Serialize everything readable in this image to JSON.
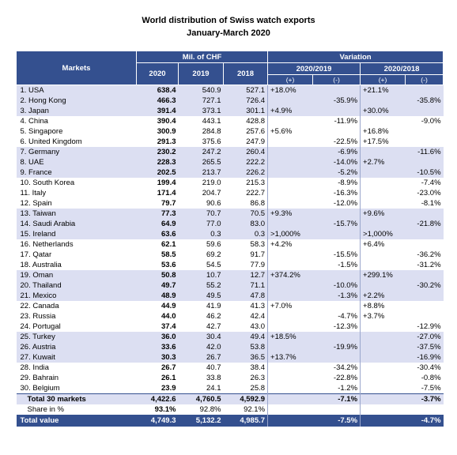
{
  "header": {
    "title": "World distribution of Swiss watch exports",
    "subtitle": "January-March 2020"
  },
  "table": {
    "head": {
      "markets": "Markets",
      "mil": "Mil. of CHF",
      "variation": "Variation",
      "years": [
        "2020",
        "2019",
        "2018"
      ],
      "periods": [
        "2020/2019",
        "2020/2018"
      ],
      "signs": [
        "(+)",
        "(-)",
        "(+)",
        "(-)"
      ]
    },
    "rows": [
      [
        "1. USA",
        "638.4",
        "540.9",
        "527.1",
        "+18.0%",
        null,
        "+21.1%",
        null
      ],
      [
        "2. Hong Kong",
        "466.3",
        "727.1",
        "726.4",
        null,
        "-35.9%",
        null,
        "-35.8%"
      ],
      [
        "3. Japan",
        "391.4",
        "373.1",
        "301.1",
        "+4.9%",
        null,
        "+30.0%",
        null
      ],
      [
        "4. China",
        "390.4",
        "443.1",
        "428.8",
        null,
        "-11.9%",
        null,
        "-9.0%"
      ],
      [
        "5. Singapore",
        "300.9",
        "284.8",
        "257.6",
        "+5.6%",
        null,
        "+16.8%",
        null
      ],
      [
        "6. United Kingdom",
        "291.3",
        "375.6",
        "247.9",
        null,
        "-22.5%",
        "+17.5%",
        null
      ],
      [
        "7. Germany",
        "230.2",
        "247.2",
        "260.4",
        null,
        "-6.9%",
        null,
        "-11.6%"
      ],
      [
        "8. UAE",
        "228.3",
        "265.5",
        "222.2",
        null,
        "-14.0%",
        "+2.7%",
        null
      ],
      [
        "9. France",
        "202.5",
        "213.7",
        "226.2",
        null,
        "-5.2%",
        null,
        "-10.5%"
      ],
      [
        "10. South Korea",
        "199.4",
        "219.0",
        "215.3",
        null,
        "-8.9%",
        null,
        "-7.4%"
      ],
      [
        "11. Italy",
        "171.4",
        "204.7",
        "222.7",
        null,
        "-16.3%",
        null,
        "-23.0%"
      ],
      [
        "12. Spain",
        "79.7",
        "90.6",
        "86.8",
        null,
        "-12.0%",
        null,
        "-8.1%"
      ],
      [
        "13. Taiwan",
        "77.3",
        "70.7",
        "70.5",
        "+9.3%",
        null,
        "+9.6%",
        null
      ],
      [
        "14. Saudi Arabia",
        "64.9",
        "77.0",
        "83.0",
        null,
        "-15.7%",
        null,
        "-21.8%"
      ],
      [
        "15. Ireland",
        "63.6",
        "0.3",
        "0.3",
        ">1,000%",
        null,
        ">1,000%",
        null
      ],
      [
        "16. Netherlands",
        "62.1",
        "59.6",
        "58.3",
        "+4.2%",
        null,
        "+6.4%",
        null
      ],
      [
        "17. Qatar",
        "58.5",
        "69.2",
        "91.7",
        null,
        "-15.5%",
        null,
        "-36.2%"
      ],
      [
        "18. Australia",
        "53.6",
        "54.5",
        "77.9",
        null,
        "-1.5%",
        null,
        "-31.2%"
      ],
      [
        "19. Oman",
        "50.8",
        "10.7",
        "12.7",
        "+374.2%",
        null,
        "+299.1%",
        null
      ],
      [
        "20. Thailand",
        "49.7",
        "55.2",
        "71.1",
        null,
        "-10.0%",
        null,
        "-30.2%"
      ],
      [
        "21. Mexico",
        "48.9",
        "49.5",
        "47.8",
        null,
        "-1.3%",
        "+2.2%",
        null
      ],
      [
        "22. Canada",
        "44.9",
        "41.9",
        "41.3",
        "+7.0%",
        null,
        "+8.8%",
        null
      ],
      [
        "23. Russia",
        "44.0",
        "46.2",
        "42.4",
        null,
        "-4.7%",
        "+3.7%",
        null
      ],
      [
        "24. Portugal",
        "37.4",
        "42.7",
        "43.0",
        null,
        "-12.3%",
        null,
        "-12.9%"
      ],
      [
        "25. Turkey",
        "36.0",
        "30.4",
        "49.4",
        "+18.5%",
        null,
        null,
        "-27.0%"
      ],
      [
        "26. Austria",
        "33.6",
        "42.0",
        "53.8",
        null,
        "-19.9%",
        null,
        "-37.5%"
      ],
      [
        "27. Kuwait",
        "30.3",
        "26.7",
        "36.5",
        "+13.7%",
        null,
        null,
        "-16.9%"
      ],
      [
        "28. India",
        "26.7",
        "40.7",
        "38.4",
        null,
        "-34.2%",
        null,
        "-30.4%"
      ],
      [
        "29. Bahrain",
        "26.1",
        "33.8",
        "26.3",
        null,
        "-22.8%",
        null,
        "-0.8%"
      ],
      [
        "30. Belgium",
        "23.9",
        "24.1",
        "25.8",
        null,
        "-1.2%",
        null,
        "-7.5%"
      ]
    ],
    "total30": [
      "Total 30 markets",
      "4,422.6",
      "4,760.5",
      "4,592.9",
      null,
      "-7.1%",
      null,
      "-3.7%"
    ],
    "share": [
      "Share in %",
      "93.1%",
      "92.8%",
      "92.1%"
    ],
    "total": [
      "Total value",
      "4,749.3",
      "5,132.2",
      "4,985.7",
      null,
      "-7.5%",
      null,
      "-4.7%"
    ]
  }
}
